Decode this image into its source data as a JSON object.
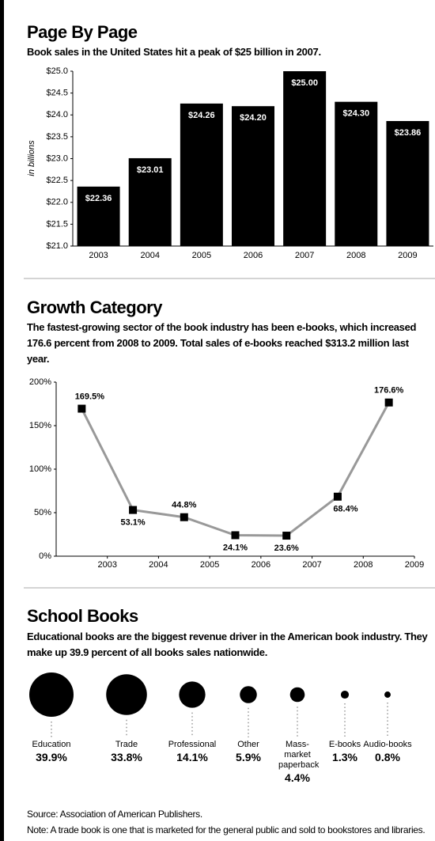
{
  "chart_data": [
    {
      "type": "bar",
      "title": "Page By Page",
      "subtitle": "Book sales in the United States hit a peak of $25 billion in 2007.",
      "y_label": "in billions",
      "categories": [
        "2003",
        "2004",
        "2005",
        "2006",
        "2007",
        "2008",
        "2009"
      ],
      "values": [
        22.36,
        23.01,
        24.26,
        24.2,
        25.0,
        24.3,
        23.86
      ],
      "value_labels": [
        "$22.36",
        "$23.01",
        "$24.26",
        "$24.20",
        "$25.00",
        "$24.30",
        "$23.86"
      ],
      "color": "#000000",
      "ylim": [
        21,
        25
      ],
      "yticks": [
        {
          "value": 21,
          "label": "$21.0"
        },
        {
          "value": 21.5,
          "label": "$21.5"
        },
        {
          "value": 22,
          "label": "$22.0"
        },
        {
          "value": 22.5,
          "label": "$22.5"
        },
        {
          "value": 23,
          "label": "$23.0"
        },
        {
          "value": 23.5,
          "label": "$23.5"
        },
        {
          "value": 24,
          "label": "$24.0"
        },
        {
          "value": 24.5,
          "label": "$24.5"
        },
        {
          "value": 25,
          "label": "$25.0"
        }
      ]
    },
    {
      "type": "line",
      "title": "Growth Category",
      "subtitle": "The fastest-growing sector of the book industry has been e-books, which increased 176.6 percent from 2008 to 2009. Total sales of e-books reached $313.2 million last year.",
      "x": [
        2002.5,
        2003.5,
        2004.5,
        2005.5,
        2006.5,
        2007.5,
        2008.5
      ],
      "values": [
        169.5,
        53.1,
        44.8,
        24.1,
        23.6,
        68.4,
        176.6
      ],
      "value_labels": [
        "169.5%",
        "53.1%",
        "44.8%",
        "24.1%",
        "23.6%",
        "68.4%",
        "176.6%"
      ],
      "color": "#999999",
      "xlim": [
        2002,
        2009
      ],
      "xticks": [
        2003,
        2004,
        2005,
        2006,
        2007,
        2008,
        2009
      ],
      "ylim": [
        0,
        200
      ],
      "yticks": [
        {
          "value": 0,
          "label": "0%"
        },
        {
          "value": 50,
          "label": "50%"
        },
        {
          "value": 100,
          "label": "100%"
        },
        {
          "value": 150,
          "label": "150%"
        },
        {
          "value": 200,
          "label": "200%"
        }
      ]
    },
    {
      "type": "bubble",
      "title": "School Books",
      "subtitle": "Educational books are the biggest revenue driver in the American book industry. They make up 39.9 percent of all books sales nationwide.",
      "categories": [
        "Education",
        "Trade",
        "Professional",
        "Other",
        "Mass-market paperback",
        "E-books",
        "Audio-books"
      ],
      "values": [
        39.9,
        33.8,
        14.1,
        5.9,
        4.4,
        1.3,
        0.8
      ],
      "value_labels": [
        "39.9%",
        "33.8%",
        "14.1%",
        "5.9%",
        "4.4%",
        "1.3%",
        "0.8%"
      ],
      "color": "#000000"
    }
  ],
  "footer": {
    "source": "Source: Association of American Publishers.",
    "note": "Note: A trade book is one that is marketed for the general public and sold to bookstores and libraries."
  }
}
